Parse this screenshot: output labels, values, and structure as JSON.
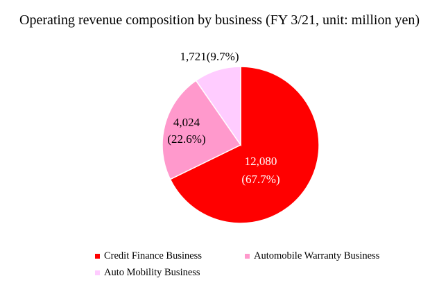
{
  "chart_data": {
    "type": "pie",
    "title": "Operating revenue composition by business (FY 3/21, unit: million yen)",
    "categories": [
      "Credit Finance Business",
      "Automobile Warranty Business",
      "Auto Mobility Business"
    ],
    "values": [
      12080,
      4024,
      1721
    ],
    "value_labels": [
      "12,080",
      "4,024",
      "1,721"
    ],
    "percent_labels": [
      "(67.7%)",
      "(22.6%)",
      "(9.7%)"
    ],
    "percents": [
      67.7,
      22.6,
      9.7
    ],
    "colors": [
      "#ff0000",
      "#ff99cc",
      "#ffccff"
    ],
    "label_colors": [
      "#ffffff",
      "#000000",
      "#000000"
    ],
    "legend_position": "bottom"
  }
}
